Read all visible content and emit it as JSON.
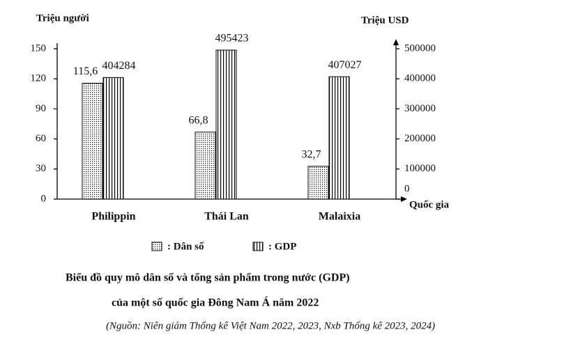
{
  "chart_data": {
    "type": "bar",
    "title": [
      "Biểu đồ quy mô dân số và tổng sản phẩm trong nước (GDP)",
      "của một số quốc gia Đông Nam Á năm 2022"
    ],
    "source": "(Nguồn: Niên giám Thống kê Việt Nam 2022, 2023, Nxb Thống kê 2023, 2024)",
    "y_label": "Triệu người",
    "y2_label": "Triệu USD",
    "x_label": "Quốc gia",
    "categories": [
      "Philippin",
      "Thái Lan",
      "Malaixia"
    ],
    "series": [
      {
        "name": ": Dân số",
        "pattern": "dots",
        "color": "#000000",
        "values": [
          115.6,
          66.8,
          32.7
        ],
        "value_labels": [
          "115,6",
          "66,8",
          "32,7"
        ]
      },
      {
        "name": ": GDP",
        "pattern": "vlines",
        "color": "#000000",
        "axis": "y2",
        "values": [
          404284,
          495423,
          407027
        ]
      }
    ],
    "ylim": [
      0,
      150
    ],
    "yticks": [
      0,
      30,
      60,
      90,
      120,
      150
    ],
    "y2lim": [
      0,
      500000
    ],
    "y2ticks": [
      0,
      100000,
      200000,
      300000,
      400000,
      500000
    ]
  }
}
